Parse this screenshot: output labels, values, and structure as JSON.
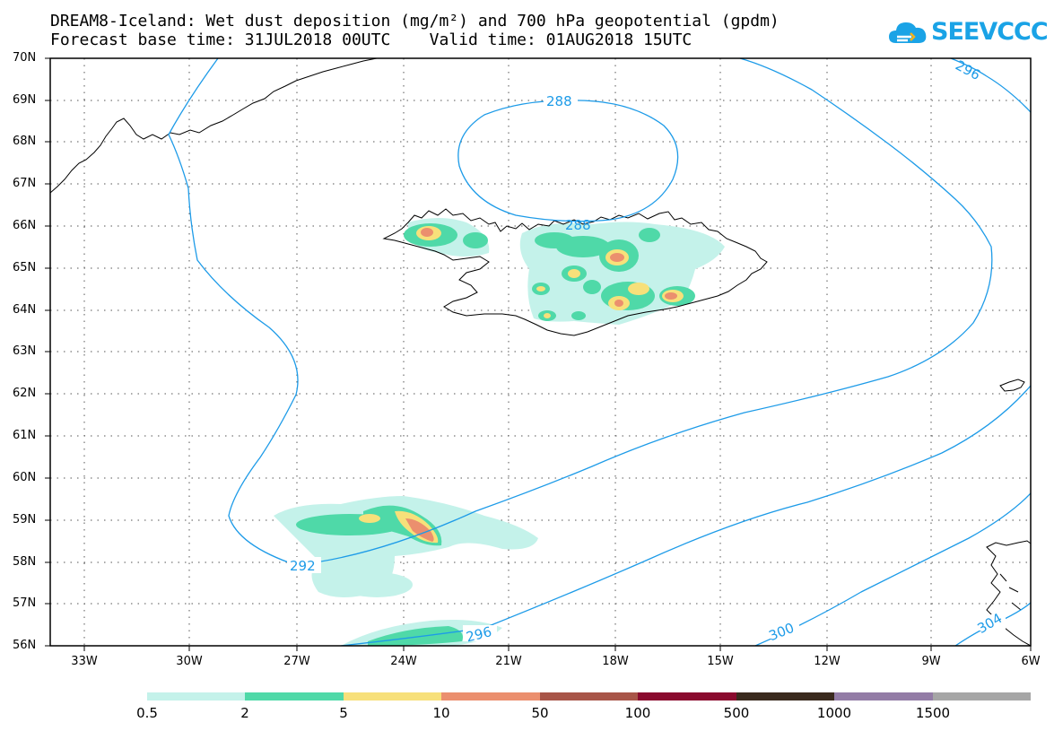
{
  "title": {
    "line1": "DREAM8-Iceland: Wet dust deposition (mg/m²) and 700 hPa geopotential (gpdm)",
    "line2": "Forecast base time: 31JUL2018 00UTC    Valid time: 01AUG2018 15UTC"
  },
  "logo": {
    "text": "SEEVCCC",
    "icon": "cloud-logo-icon",
    "color": "#1aa3e6"
  },
  "map": {
    "lat_labels": [
      "70N",
      "69N",
      "68N",
      "67N",
      "66N",
      "65N",
      "64N",
      "63N",
      "62N",
      "61N",
      "60N",
      "59N",
      "58N",
      "57N",
      "56N"
    ],
    "lon_labels": [
      "33W",
      "30W",
      "27W",
      "24W",
      "21W",
      "18W",
      "15W",
      "12W",
      "9W",
      "6W"
    ],
    "contour_color": "#1d9be8",
    "contour_labels": [
      "288",
      "288",
      "292",
      "296",
      "296",
      "300",
      "304"
    ],
    "grid": "dotted"
  },
  "colorbar": {
    "labels": [
      "0.5",
      "2",
      "5",
      "10",
      "50",
      "100",
      "500",
      "1000",
      "1500"
    ],
    "colors": [
      "#c4f2ea",
      "#4fd9a8",
      "#f7e07a",
      "#eb8f6e",
      "#a85548",
      "#8a0a2e",
      "#3a2a1e",
      "#937ca6",
      "#a6a6a6"
    ]
  }
}
